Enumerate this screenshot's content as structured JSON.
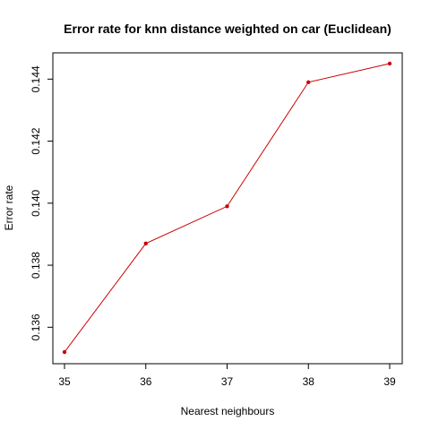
{
  "chart_data": {
    "type": "line",
    "title": "Error rate for knn distance weighted on car (Euclidean)",
    "xlabel": "Nearest neighbours",
    "ylabel": "Error rate",
    "x": [
      35,
      36,
      37,
      38,
      39
    ],
    "series": [
      {
        "values": [
          0.1352,
          0.1387,
          0.1399,
          0.1439,
          0.1445
        ],
        "color": "#cc0000"
      }
    ],
    "xlim": [
      35,
      39
    ],
    "ylim": [
      0.1352,
      0.1445
    ],
    "xticks": [
      "35",
      "36",
      "37",
      "38",
      "39"
    ],
    "yticks": [
      "0.136",
      "0.138",
      "0.140",
      "0.142",
      "0.144"
    ],
    "grid": false,
    "legend": "none"
  }
}
